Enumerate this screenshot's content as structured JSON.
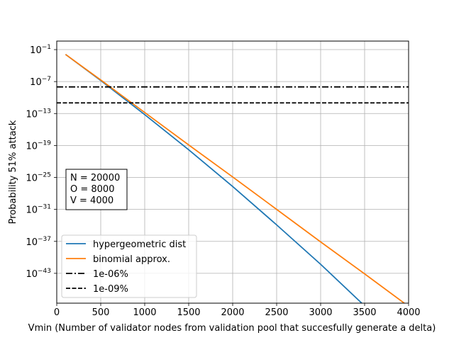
{
  "chart_data": {
    "type": "line",
    "title": "",
    "xlabel": "Vmin (Number of validator nodes from validation pool that succesfully generate a delta)",
    "ylabel": "Probability 51% attack",
    "xlim": [
      0,
      4000
    ],
    "ylim_log10": [
      -48.6,
      0.6
    ],
    "y_scale": "log",
    "grid": true,
    "x_ticks": [
      {
        "value": 0,
        "label": "0"
      },
      {
        "value": 500,
        "label": "500"
      },
      {
        "value": 1000,
        "label": "1000"
      },
      {
        "value": 1500,
        "label": "1500"
      },
      {
        "value": 2000,
        "label": "2000"
      },
      {
        "value": 2500,
        "label": "2500"
      },
      {
        "value": 3000,
        "label": "3000"
      },
      {
        "value": 3500,
        "label": "3500"
      },
      {
        "value": 4000,
        "label": "4000"
      }
    ],
    "y_ticks": [
      {
        "value": -1,
        "base": "10",
        "exp": "−1"
      },
      {
        "value": -7,
        "base": "10",
        "exp": "−7"
      },
      {
        "value": -13,
        "base": "10",
        "exp": "−13"
      },
      {
        "value": -19,
        "base": "10",
        "exp": "−19"
      },
      {
        "value": -25,
        "base": "10",
        "exp": "−25"
      },
      {
        "value": -31,
        "base": "10",
        "exp": "−31"
      },
      {
        "value": -37,
        "base": "10",
        "exp": "−37"
      },
      {
        "value": -43,
        "base": "10",
        "exp": "−43"
      }
    ],
    "series": [
      {
        "name": "hypergeometric dist",
        "color": "#1f77b4",
        "style": "solid",
        "x": [
          100,
          500,
          1000,
          1500,
          2000,
          2500,
          3000,
          3500,
          4000
        ],
        "log10_y": [
          -1.9,
          -6.8,
          -13.2,
          -19.8,
          -26.7,
          -33.9,
          -41.3,
          -49.1,
          -57.3
        ]
      },
      {
        "name": "binomial approx.",
        "color": "#ff7f0e",
        "style": "solid",
        "x": [
          100,
          500,
          1000,
          1500,
          2000,
          2500,
          3000,
          3500,
          4000
        ],
        "log10_y": [
          -1.9,
          -6.7,
          -12.8,
          -18.9,
          -24.9,
          -31.0,
          -37.1,
          -43.1,
          -49.2
        ]
      },
      {
        "name": "1e-06%",
        "color": "#000000",
        "style": "dashdot",
        "constant_log10_y": -8
      },
      {
        "name": "1e-09%",
        "color": "#000000",
        "style": "dashed",
        "constant_log10_y": -11
      }
    ],
    "legend_placement": "lower-left",
    "annotation": [
      "N = 20000",
      "O = 8000",
      "V = 4000"
    ]
  }
}
